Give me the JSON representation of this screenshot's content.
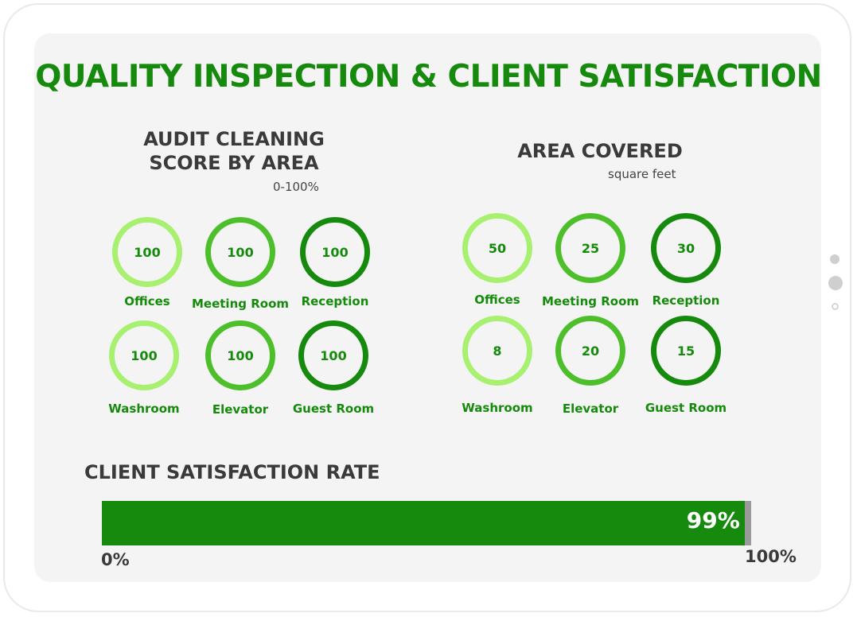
{
  "title": "QUALITY INSPECTION & CLIENT SATISFACTION",
  "colors": {
    "light": "#a8f06f",
    "medium": "#4dbf2b",
    "dark": "#168a0c",
    "text": "#3a3a3a"
  },
  "audit": {
    "title_line1": "AUDIT CLEANING",
    "title_line2": "SCORE BY AREA",
    "unit": "0-100%"
  },
  "area": {
    "title": "AREA COVERED",
    "unit": "square feet"
  },
  "satisfaction": {
    "title": "CLIENT SATISFACTION RATE",
    "value_label": "99%",
    "min_label": "0%",
    "max_label": "100%"
  },
  "chart_data": [
    {
      "type": "table",
      "title": "AUDIT CLEANING SCORE BY AREA",
      "subtitle": "0-100%",
      "categories": [
        "Offices",
        "Meeting Room",
        "Reception",
        "Washroom",
        "Elevator",
        "Guest Room"
      ],
      "values": [
        100,
        100,
        100,
        100,
        100,
        100
      ]
    },
    {
      "type": "table",
      "title": "AREA COVERED",
      "subtitle": "square feet",
      "categories": [
        "Offices",
        "Meeting Room",
        "Reception",
        "Washroom",
        "Elevator",
        "Guest Room"
      ],
      "values": [
        50,
        25,
        30,
        8,
        20,
        15
      ]
    },
    {
      "type": "bar",
      "title": "CLIENT SATISFACTION RATE",
      "values": [
        99
      ],
      "ylim": [
        0,
        100
      ]
    }
  ]
}
